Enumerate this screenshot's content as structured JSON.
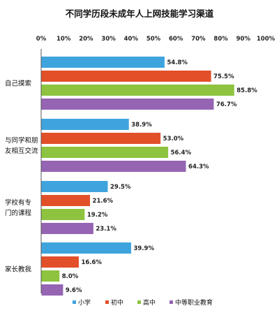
{
  "chart_data": {
    "type": "bar",
    "orientation": "horizontal",
    "title": "不同学历段未成年人上网技能学习渠道",
    "xlim": [
      0,
      100
    ],
    "x_ticks": [
      "0%",
      "10%",
      "20%",
      "30%",
      "40%",
      "50%",
      "60%",
      "70%",
      "80%",
      "90%",
      "100%"
    ],
    "categories": [
      [
        "自己摸索"
      ],
      [
        "与同学和朋",
        "友相互交流"
      ],
      [
        "学校有专",
        "门的课程"
      ],
      [
        "家长教我"
      ]
    ],
    "series": [
      {
        "name": "小学",
        "color": "#3fa4de",
        "values": [
          54.8,
          38.9,
          29.5,
          39.9
        ]
      },
      {
        "name": "初中",
        "color": "#e2502a",
        "values": [
          75.5,
          53.0,
          21.6,
          16.6
        ]
      },
      {
        "name": "高中",
        "color": "#8dc33f",
        "values": [
          85.8,
          56.4,
          19.2,
          8.0
        ]
      },
      {
        "name": "中等职业教育",
        "color": "#9565b4",
        "values": [
          76.7,
          64.3,
          23.1,
          9.6
        ]
      }
    ],
    "value_labels": [
      [
        "54.8%",
        "38.9%",
        "29.5%",
        "39.9%"
      ],
      [
        "75.5%",
        "53.0%",
        "21.6%",
        "16.6%"
      ],
      [
        "85.8%",
        "56.4%",
        "19.2%",
        "8.0%"
      ],
      [
        "76.7%",
        "64.3%",
        "23.1%",
        "9.6%"
      ]
    ],
    "grid": false,
    "legend_position": "bottom"
  }
}
